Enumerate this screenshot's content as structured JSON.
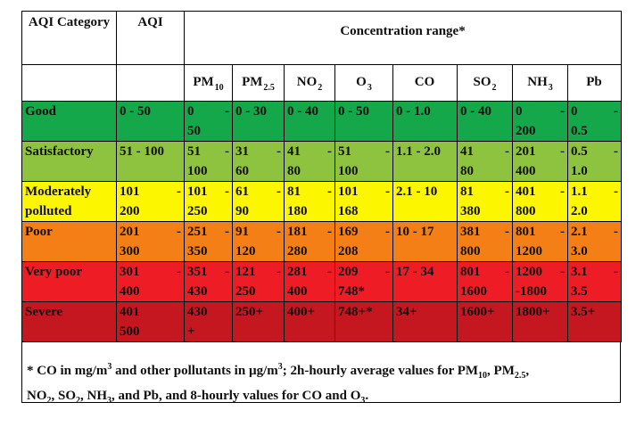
{
  "header": {
    "category_label": "AQI Category",
    "aqi_label": "AQI",
    "concentration_label": "Concentration range*",
    "pollutants": [
      {
        "base": "PM",
        "sub": "10"
      },
      {
        "base": "PM",
        "sub": "2.5"
      },
      {
        "base": "NO",
        "sub": "2"
      },
      {
        "base": "O",
        "sub": "3"
      },
      {
        "base": "CO",
        "sub": ""
      },
      {
        "base": "SO",
        "sub": "2"
      },
      {
        "base": "NH",
        "sub": "3"
      },
      {
        "base": "Pb",
        "sub": ""
      }
    ]
  },
  "rows": [
    {
      "category": "Good",
      "aqi": [
        "0 - 50"
      ],
      "values": [
        [
          "0",
          "50"
        ],
        [
          "0 - 30"
        ],
        [
          "0 - 40"
        ],
        [
          "0 - 50"
        ],
        [
          "0 - 1.0"
        ],
        [
          "0 - 40"
        ],
        [
          "0",
          "200"
        ],
        [
          "0",
          "0.5"
        ]
      ]
    },
    {
      "category": "Satisfactory",
      "aqi": [
        "51 - 100"
      ],
      "values": [
        [
          "51",
          "100"
        ],
        [
          "31",
          "60"
        ],
        [
          "41",
          "80"
        ],
        [
          "51",
          "100"
        ],
        [
          "1.1 - 2.0"
        ],
        [
          "41",
          "80"
        ],
        [
          "201",
          "400"
        ],
        [
          "0.5",
          "1.0"
        ]
      ]
    },
    {
      "category": "Moderately polluted",
      "aqi": [
        "101",
        "200"
      ],
      "values": [
        [
          "101",
          "250"
        ],
        [
          "61",
          "90"
        ],
        [
          "81",
          "180"
        ],
        [
          "101",
          "168"
        ],
        [
          "2.1 - 10"
        ],
        [
          "81",
          "380"
        ],
        [
          "401",
          "800"
        ],
        [
          "1.1",
          "2.0"
        ]
      ]
    },
    {
      "category": "Poor",
      "aqi": [
        "201",
        "300"
      ],
      "values": [
        [
          "251",
          "350"
        ],
        [
          "91",
          "120"
        ],
        [
          "181",
          "280"
        ],
        [
          "169",
          "208"
        ],
        [
          "10 - 17"
        ],
        [
          "381",
          "800"
        ],
        [
          "801",
          "1200"
        ],
        [
          "2.1",
          "3.0"
        ]
      ]
    },
    {
      "category": "Very poor",
      "aqi": [
        "301",
        "400"
      ],
      "values": [
        [
          "351",
          "430"
        ],
        [
          "121",
          "250"
        ],
        [
          "281",
          "400"
        ],
        [
          "209",
          "748*"
        ],
        [
          "17 - 34"
        ],
        [
          "801",
          "1600"
        ],
        [
          "1200",
          "-1800"
        ],
        [
          "3.1",
          "3.5"
        ]
      ]
    },
    {
      "category": "Severe",
      "aqi": [
        "401",
        "500"
      ],
      "values": [
        [
          "430",
          "+"
        ],
        [
          "250+"
        ],
        [
          "400+"
        ],
        [
          "748+*"
        ],
        [
          "34+"
        ],
        [
          "1600+"
        ],
        [
          "1800+"
        ],
        [
          "3.5+"
        ]
      ]
    }
  ],
  "footnote": {
    "p1": "* CO in mg/m",
    "sup1": "3",
    "p2": " and other pollutants in µg/m",
    "sup2": "3",
    "p3": "; 2h-hourly average values for PM",
    "sub_a": "10",
    "p4": ", PM",
    "sub_b": "2.5",
    "p5": ",",
    "p6": "NO",
    "sub_c": "2",
    "p7": ", SO",
    "sub_d": "2",
    "p8": ", NH",
    "sub_e": "3",
    "p9": ", and Pb, and 8-hourly values for CO and O",
    "sub_f": "3",
    "p10": "."
  },
  "colors": {
    "good": "#15a84a",
    "satisfactory": "#8dc33f",
    "moderately_polluted": "#fcf600",
    "poor": "#f57f17",
    "very_poor": "#ee1c24",
    "severe": "#c4171f"
  }
}
